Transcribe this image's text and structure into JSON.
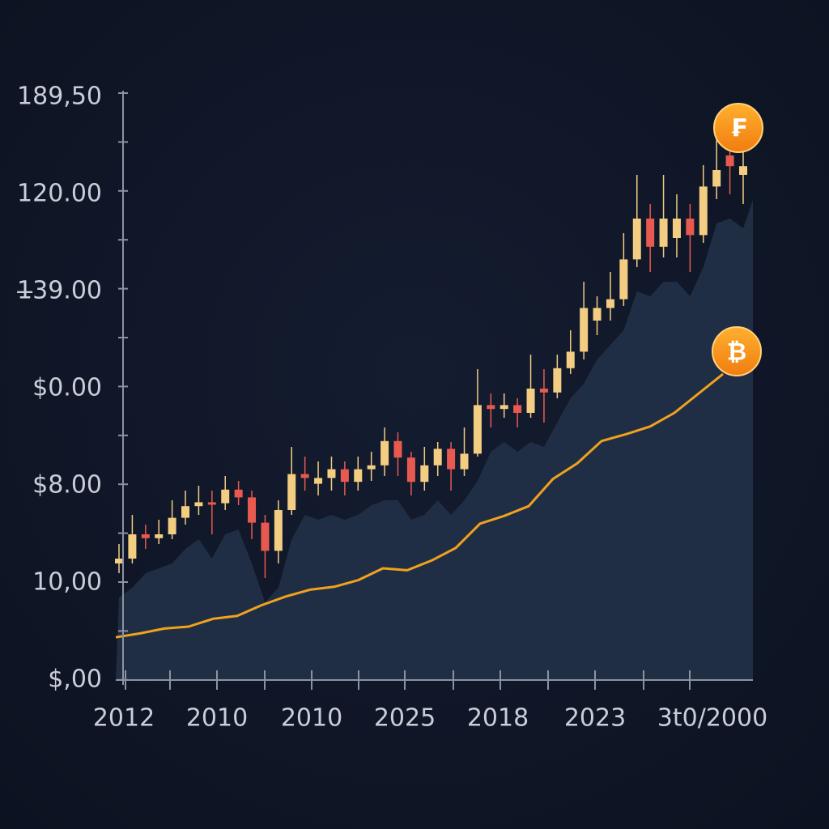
{
  "chart_data": {
    "type": "candlestick",
    "y_labels": [
      "$,00",
      "10,00",
      "$8.00",
      "$0.00",
      "1̶39.00",
      "120.00",
      "189,50"
    ],
    "x_labels": [
      "2012",
      "2010",
      "2010",
      "2025",
      "2018",
      "2023",
      "3t0/2000"
    ],
    "ylim": [
      0,
      6
    ],
    "up_color": "#f2cd82",
    "down_color": "#e85a50",
    "candles": {
      "open": [
        1.2,
        1.25,
        1.5,
        1.46,
        1.5,
        1.67,
        1.79,
        1.83,
        1.82,
        1.96,
        1.88,
        1.62,
        1.33,
        1.75,
        2.12,
        2.02,
        2.08,
        2.17,
        2.04,
        2.17,
        2.21,
        2.46,
        2.29,
        2.04,
        2.21,
        2.38,
        2.17,
        2.33,
        2.83,
        2.79,
        2.83,
        2.75,
        3.0,
        2.96,
        3.21,
        3.38,
        3.7,
        3.83,
        3.92,
        4.33,
        4.75,
        4.46,
        4.55,
        4.75,
        4.58,
        5.08,
        5.4,
        5.2
      ],
      "high": [
        1.4,
        1.7,
        1.6,
        1.65,
        1.85,
        1.95,
        2.0,
        1.95,
        2.1,
        2.05,
        1.95,
        1.7,
        1.85,
        2.4,
        2.3,
        2.25,
        2.3,
        2.25,
        2.3,
        2.35,
        2.6,
        2.55,
        2.35,
        2.4,
        2.45,
        2.45,
        2.6,
        3.2,
        2.95,
        2.95,
        2.9,
        3.35,
        3.2,
        3.35,
        3.6,
        4.1,
        3.95,
        4.2,
        4.6,
        5.2,
        4.9,
        5.2,
        5.0,
        4.9,
        5.3,
        5.7,
        5.55,
        5.55
      ],
      "low": [
        1.1,
        1.2,
        1.35,
        1.4,
        1.45,
        1.6,
        1.7,
        1.5,
        1.75,
        1.8,
        1.45,
        1.05,
        1.2,
        1.7,
        1.95,
        1.9,
        1.95,
        1.9,
        1.95,
        2.05,
        2.1,
        2.1,
        1.9,
        1.95,
        2.1,
        1.95,
        2.1,
        2.3,
        2.6,
        2.7,
        2.6,
        2.7,
        2.65,
        2.9,
        3.15,
        3.3,
        3.55,
        3.7,
        3.85,
        4.25,
        4.2,
        4.35,
        4.35,
        4.2,
        4.5,
        4.95,
        5.0,
        4.9
      ],
      "close": [
        1.25,
        1.5,
        1.46,
        1.5,
        1.67,
        1.79,
        1.83,
        1.82,
        1.96,
        1.88,
        1.62,
        1.33,
        1.75,
        2.12,
        2.08,
        2.08,
        2.17,
        2.04,
        2.17,
        2.21,
        2.46,
        2.29,
        2.04,
        2.21,
        2.38,
        2.17,
        2.33,
        2.83,
        2.79,
        2.83,
        2.75,
        3.0,
        2.96,
        3.21,
        3.38,
        3.83,
        3.83,
        3.92,
        4.33,
        4.75,
        4.46,
        4.75,
        4.75,
        4.58,
        5.08,
        5.25,
        5.29,
        5.29
      ]
    },
    "line": {
      "color": "#f0a21e",
      "values": [
        0.44,
        0.48,
        0.53,
        0.55,
        0.63,
        0.66,
        0.77,
        0.86,
        0.93,
        0.96,
        1.03,
        1.15,
        1.13,
        1.23,
        1.36,
        1.61,
        1.69,
        1.79,
        2.07,
        2.23,
        2.46,
        2.53,
        2.61,
        2.75,
        2.95,
        3.15
      ]
    },
    "coins": [
      "₣",
      "₿"
    ]
  }
}
